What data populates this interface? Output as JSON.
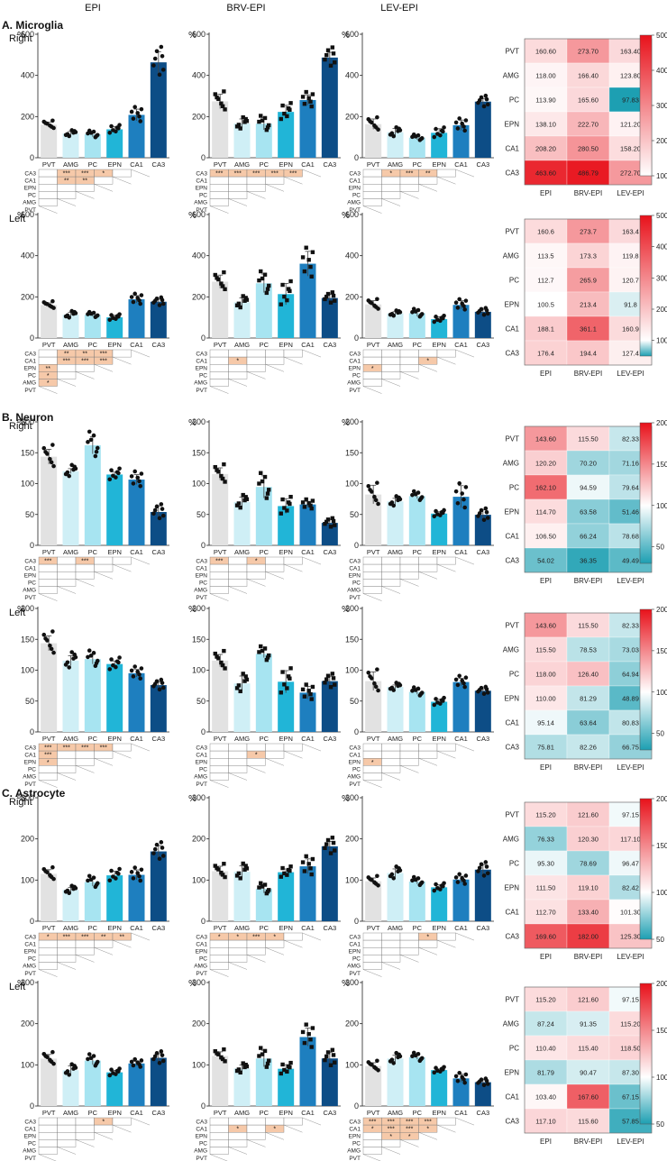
{
  "column_headers": [
    "EPI",
    "BRV-EPI",
    "LEV-EPI"
  ],
  "regions": [
    "PVT",
    "AMG",
    "PC",
    "EPN",
    "CA1",
    "CA3"
  ],
  "region_colors": [
    "#e2e2e2",
    "#cfeff6",
    "#a7e4f1",
    "#21b5d7",
    "#1e7fbf",
    "#0d4d86"
  ],
  "y_unit_label": "%",
  "heatmap_colors": {
    "low": "#1d9fb2",
    "mid": "#ffffff",
    "high": "#e8121b"
  },
  "sections": [
    {
      "id": "A",
      "title": "A. Microglia"
    },
    {
      "id": "B",
      "title": "B. Neuron"
    },
    {
      "id": "C",
      "title": "C. Astrocyte"
    }
  ],
  "chart_data": [
    {
      "type": "bar",
      "section": "A. Microglia",
      "side": "Right",
      "ylim": [
        0,
        600
      ],
      "yticks": [
        0,
        200,
        400,
        600
      ],
      "panels": [
        {
          "group": "EPI",
          "values": [
            160.6,
            118.0,
            113.9,
            138.1,
            208.2,
            463.6
          ],
          "sem": [
            12,
            10,
            12,
            14,
            28,
            52
          ],
          "stars": {
            "CA3": {
              "AMG": "***",
              "PC": "***",
              "EPN": "*"
            },
            "CA1": {
              "AMG": "**",
              "PC": "**"
            }
          }
        },
        {
          "group": "BRV-EPI",
          "values": [
            273.7,
            166.4,
            165.6,
            222.7,
            280.5,
            486.8
          ],
          "sem": [
            35,
            22,
            30,
            32,
            25,
            25
          ],
          "stars": {
            "CA3": {
              "PVT": "***",
              "AMG": "***",
              "PC": "***",
              "EPN": "***",
              "CA1": "***"
            }
          }
        },
        {
          "group": "LEV-EPI",
          "values": [
            163.4,
            123.8,
            97.83,
            121.2,
            158.2,
            272.7
          ],
          "sem": [
            25,
            18,
            10,
            20,
            25,
            15
          ],
          "stars": {
            "CA3": {
              "AMG": "*",
              "PC": "***",
              "EPN": "**"
            }
          }
        }
      ],
      "heatmap": {
        "vmin": 100,
        "vmax": 500,
        "colorbar_ticks": [
          100,
          200,
          300,
          400,
          500
        ],
        "rows": [
          [
            "160.60",
            "273.70",
            "163.40"
          ],
          [
            "118.00",
            "166.40",
            "123.80"
          ],
          [
            "113.90",
            "165.60",
            "97.83"
          ],
          [
            "138.10",
            "222.70",
            "121.20"
          ],
          [
            "208.20",
            "280.50",
            "158.20"
          ],
          [
            "463.60",
            "486.79",
            "272.70"
          ]
        ]
      }
    },
    {
      "type": "bar",
      "section": "A. Microglia",
      "side": "Left",
      "ylim": [
        0,
        600
      ],
      "yticks": [
        0,
        200,
        400,
        600
      ],
      "panels": [
        {
          "group": "EPI",
          "values": [
            160.6,
            113.5,
            112.7,
            100.5,
            188.1,
            176.4
          ],
          "sem": [
            10,
            12,
            8,
            10,
            18,
            12
          ],
          "stars": {
            "CA3": {
              "AMG": "**",
              "PC": "**",
              "EPN": "***"
            },
            "CA1": {
              "AMG": "***",
              "PC": "***",
              "EPN": "***"
            },
            "EPN": {
              "PVT": "**"
            },
            "PC": {
              "PVT": "*"
            },
            "AMG": {
              "PVT": "*"
            }
          }
        },
        {
          "group": "BRV-EPI",
          "values": [
            273.7,
            173.3,
            265.9,
            213.4,
            361.1,
            194.4
          ],
          "sem": [
            32,
            22,
            45,
            52,
            60,
            18
          ],
          "stars": {
            "CA1": {
              "AMG": "*"
            }
          }
        },
        {
          "group": "LEV-EPI",
          "values": [
            163.4,
            119.8,
            120.7,
            91.8,
            160.9,
            127.4
          ],
          "sem": [
            18,
            8,
            15,
            12,
            20,
            12
          ],
          "stars": {
            "CA1": {
              "EPN": "*"
            },
            "EPN": {
              "PVT": "*"
            }
          }
        }
      ],
      "heatmap": {
        "vmin": 50,
        "vmax": 500,
        "colorbar_ticks": [
          100,
          200,
          300,
          400,
          500
        ],
        "rows": [
          [
            "160.6",
            "273.7",
            "163.4"
          ],
          [
            "113.5",
            "173.3",
            "119.8"
          ],
          [
            "112.7",
            "265.9",
            "120.7"
          ],
          [
            "100.5",
            "213.4",
            "91.8"
          ],
          [
            "188.1",
            "361.1",
            "160.9"
          ],
          [
            "176.4",
            "194.4",
            "127.4"
          ]
        ]
      }
    },
    {
      "type": "bar",
      "section": "B. Neuron",
      "side": "Right",
      "ylim": [
        0,
        200
      ],
      "yticks": [
        0,
        50,
        100,
        150,
        200
      ],
      "panels": [
        {
          "group": "EPI",
          "values": [
            143.6,
            120.2,
            162.1,
            114.7,
            106.5,
            54.02
          ],
          "sem": [
            12,
            4,
            14,
            4,
            8,
            10
          ],
          "stars": {
            "CA3": {
              "PVT": "***",
              "PC": "***"
            }
          }
        },
        {
          "group": "BRV-EPI",
          "values": [
            115.5,
            70.2,
            94.59,
            63.58,
            66.24,
            36.35
          ],
          "sem": [
            10,
            8,
            18,
            12,
            5,
            6
          ],
          "stars": {
            "CA3": {
              "PVT": "***",
              "PC": "*"
            }
          }
        },
        {
          "group": "LEV-EPI",
          "values": [
            82.33,
            71.16,
            79.64,
            51.46,
            78.68,
            49.49
          ],
          "sem": [
            15,
            5,
            4,
            3,
            18,
            8
          ],
          "stars": {}
        }
      ],
      "heatmap": {
        "vmin": 30,
        "vmax": 200,
        "colorbar_ticks": [
          50,
          100,
          150,
          200
        ],
        "rows": [
          [
            "143.60",
            "115.50",
            "82.33"
          ],
          [
            "120.20",
            "70.20",
            "71.16"
          ],
          [
            "162.10",
            "94.59",
            "79.64"
          ],
          [
            "114.70",
            "63.58",
            "51.46"
          ],
          [
            "106.50",
            "66.24",
            "78.68"
          ],
          [
            "54.02",
            "36.35",
            "49.49"
          ]
        ]
      }
    },
    {
      "type": "bar",
      "section": "B. Neuron",
      "side": "Left",
      "ylim": [
        0,
        200
      ],
      "yticks": [
        0,
        50,
        100,
        150,
        200
      ],
      "panels": [
        {
          "group": "EPI",
          "values": [
            143.6,
            115.5,
            118.0,
            110.0,
            95.14,
            75.81
          ],
          "sem": [
            12,
            8,
            8,
            5,
            6,
            5
          ],
          "stars": {
            "CA3": {
              "PVT": "***",
              "AMG": "***",
              "PC": "***",
              "EPN": "***"
            },
            "CA1": {
              "PVT": "***"
            },
            "EPN": {
              "PVT": "*"
            }
          }
        },
        {
          "group": "BRV-EPI",
          "values": [
            115.5,
            78.53,
            126.4,
            81.29,
            63.64,
            82.26
          ],
          "sem": [
            10,
            12,
            6,
            18,
            10,
            8
          ],
          "stars": {
            "CA1": {
              "PC": "*"
            }
          }
        },
        {
          "group": "LEV-EPI",
          "values": [
            82.33,
            73.03,
            64.94,
            48.89,
            80.83,
            66.75
          ],
          "sem": [
            15,
            3,
            4,
            4,
            6,
            3
          ],
          "stars": {
            "EPN": {
              "PVT": "*"
            }
          }
        }
      ],
      "heatmap": {
        "vmin": 30,
        "vmax": 200,
        "colorbar_ticks": [
          50,
          100,
          150,
          200
        ],
        "rows": [
          [
            "143.60",
            "115.50",
            "82.33"
          ],
          [
            "115.50",
            "78.53",
            "73.03"
          ],
          [
            "118.00",
            "126.40",
            "64.94"
          ],
          [
            "110.00",
            "81.29",
            "48.89"
          ],
          [
            "95.14",
            "63.64",
            "80.83"
          ],
          [
            "75.81",
            "82.26",
            "66.75"
          ]
        ]
      }
    },
    {
      "type": "bar",
      "section": "C. Astrocyte",
      "side": "Right",
      "ylim": [
        0,
        300
      ],
      "yticks": [
        0,
        100,
        200,
        300
      ],
      "panels": [
        {
          "group": "EPI",
          "values": [
            115.2,
            76.33,
            95.3,
            111.5,
            112.7,
            169.6
          ],
          "sem": [
            10,
            6,
            10,
            10,
            12,
            14
          ],
          "stars": {
            "CA3": {
              "PVT": "*",
              "AMG": "***",
              "PC": "***",
              "EPN": "**",
              "CA1": "**"
            }
          }
        },
        {
          "group": "BRV-EPI",
          "values": [
            121.6,
            120.3,
            78.69,
            119.1,
            133.4,
            182.0
          ],
          "sem": [
            12,
            14,
            10,
            8,
            18,
            12
          ],
          "stars": {
            "CA3": {
              "PVT": "*",
              "AMG": "*",
              "PC": "***",
              "EPN": "*"
            }
          }
        },
        {
          "group": "LEV-EPI",
          "values": [
            97.15,
            117.1,
            96.47,
            82.42,
            101.3,
            125.3
          ],
          "sem": [
            8,
            10,
            6,
            6,
            8,
            12
          ],
          "stars": {
            "CA3": {
              "EPN": "*"
            }
          }
        }
      ],
      "heatmap": {
        "vmin": 50,
        "vmax": 200,
        "colorbar_ticks": [
          50,
          100,
          150,
          200
        ],
        "rows": [
          [
            "115.20",
            "121.60",
            "97.15"
          ],
          [
            "76.33",
            "120.30",
            "117.10"
          ],
          [
            "95.30",
            "78.69",
            "96.47"
          ],
          [
            "111.50",
            "119.10",
            "82.42"
          ],
          [
            "112.70",
            "133.40",
            "101.30"
          ],
          [
            "169.60",
            "182.00",
            "125.30"
          ]
        ]
      }
    },
    {
      "type": "bar",
      "section": "C. Astrocyte",
      "side": "Left",
      "ylim": [
        0,
        300
      ],
      "yticks": [
        0,
        100,
        200,
        300
      ],
      "panels": [
        {
          "group": "EPI",
          "values": [
            115.2,
            87.24,
            110.4,
            81.79,
            103.4,
            117.1
          ],
          "sem": [
            10,
            10,
            10,
            5,
            5,
            10
          ],
          "stars": {
            "CA3": {
              "EPN": "*"
            }
          }
        },
        {
          "group": "BRV-EPI",
          "values": [
            121.6,
            91.35,
            115.4,
            90.47,
            167.6,
            115.6
          ],
          "sem": [
            10,
            8,
            20,
            10,
            22,
            15
          ],
          "stars": {
            "CA1": {
              "AMG": "*",
              "EPN": "*"
            }
          }
        },
        {
          "group": "LEV-EPI",
          "values": [
            97.15,
            115.2,
            118.5,
            87.3,
            67.15,
            57.85
          ],
          "sem": [
            8,
            8,
            5,
            3,
            10,
            6
          ],
          "stars": {
            "CA3": {
              "PVT": "***",
              "AMG": "***",
              "PC": "***",
              "EPN": "***"
            },
            "CA1": {
              "PVT": "*",
              "AMG": "***",
              "PC": "***",
              "EPN": "*"
            },
            "EPN": {
              "AMG": "*",
              "PC": "*"
            }
          }
        }
      ],
      "heatmap": {
        "vmin": 50,
        "vmax": 200,
        "colorbar_ticks": [
          50,
          100,
          150,
          200
        ],
        "rows": [
          [
            "115.20",
            "121.60",
            "97.15"
          ],
          [
            "87.24",
            "91.35",
            "115.20"
          ],
          [
            "110.40",
            "115.40",
            "118.50"
          ],
          [
            "81.79",
            "90.47",
            "87.30"
          ],
          [
            "103.40",
            "167.60",
            "67.15"
          ],
          [
            "117.10",
            "115.60",
            "57.85"
          ]
        ]
      }
    }
  ]
}
